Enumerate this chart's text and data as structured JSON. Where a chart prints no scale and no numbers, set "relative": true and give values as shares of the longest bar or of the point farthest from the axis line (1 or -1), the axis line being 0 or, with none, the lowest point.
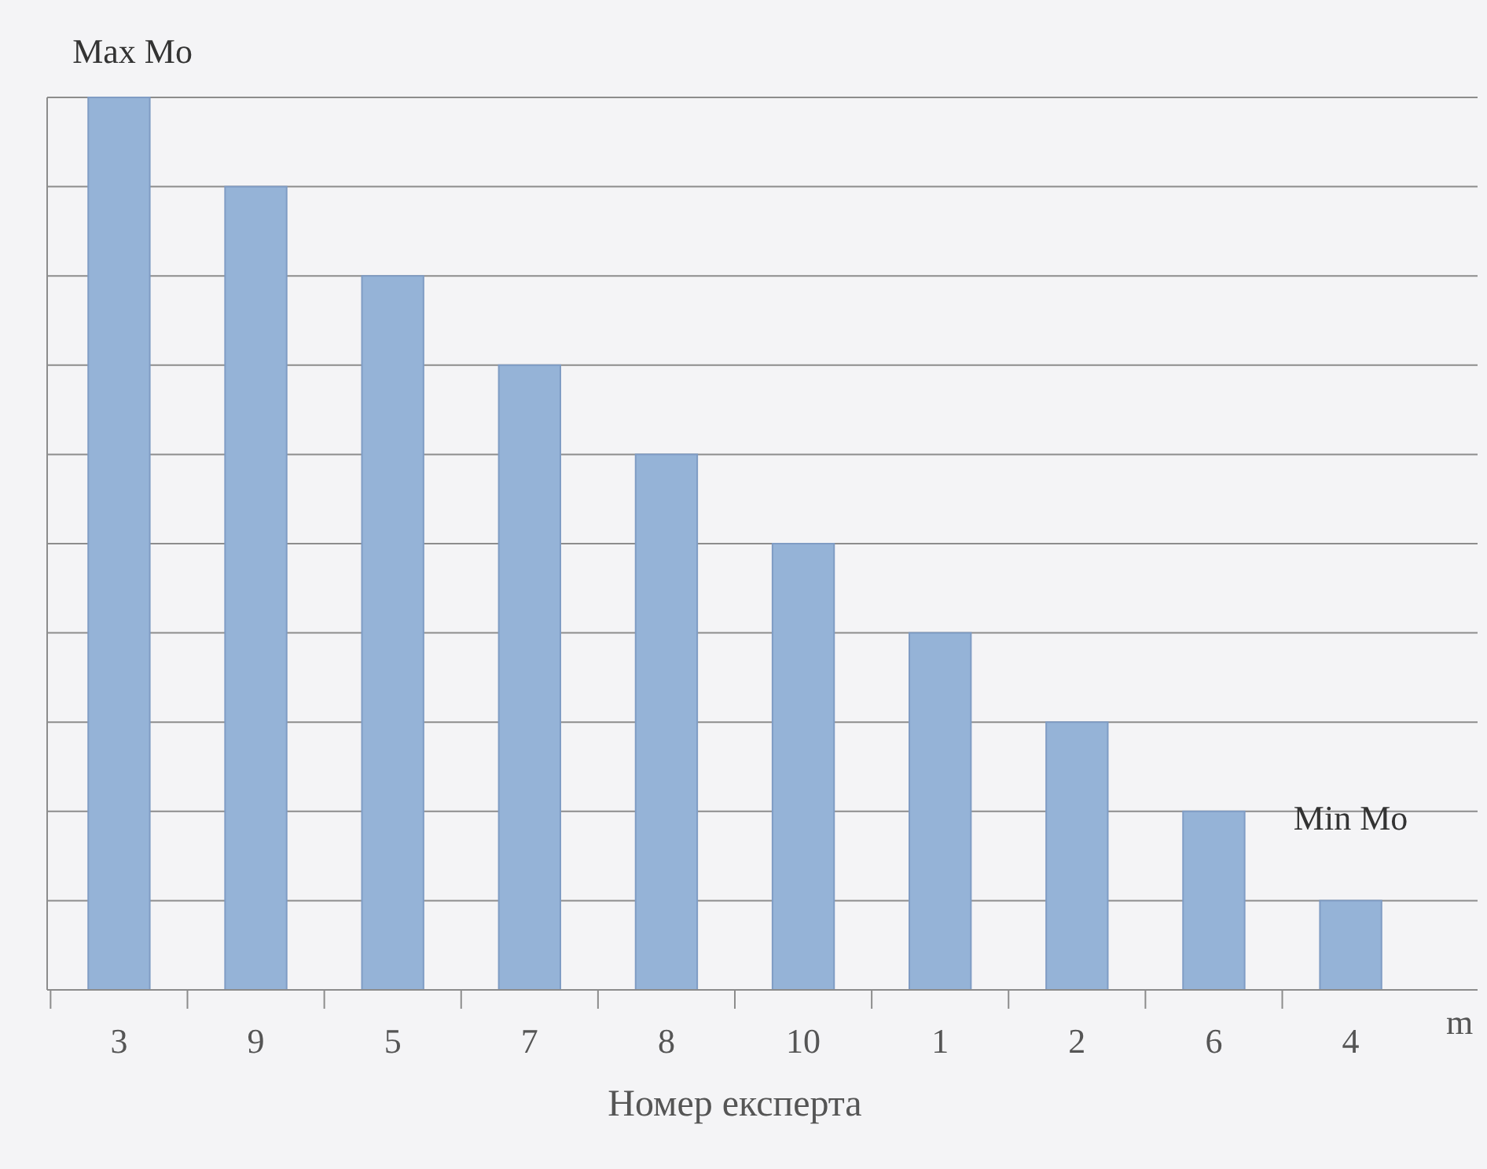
{
  "chart_data": {
    "type": "bar",
    "relative": true,
    "categories": [
      "3",
      "9",
      "5",
      "7",
      "8",
      "10",
      "1",
      "2",
      "6",
      "4"
    ],
    "values": [
      1,
      0.9,
      0.8,
      0.7,
      0.6,
      0.5,
      0.4,
      0.3,
      0.2,
      0.1
    ],
    "color": "#95b3d7",
    "xlabel": "Номер експерта",
    "annotations": [
      {
        "text": "Max Mo",
        "x": "3",
        "y": 1
      },
      {
        "text": "Min Mo",
        "x": "4",
        "y": 0.1
      },
      "m"
    ],
    "grid": true
  }
}
